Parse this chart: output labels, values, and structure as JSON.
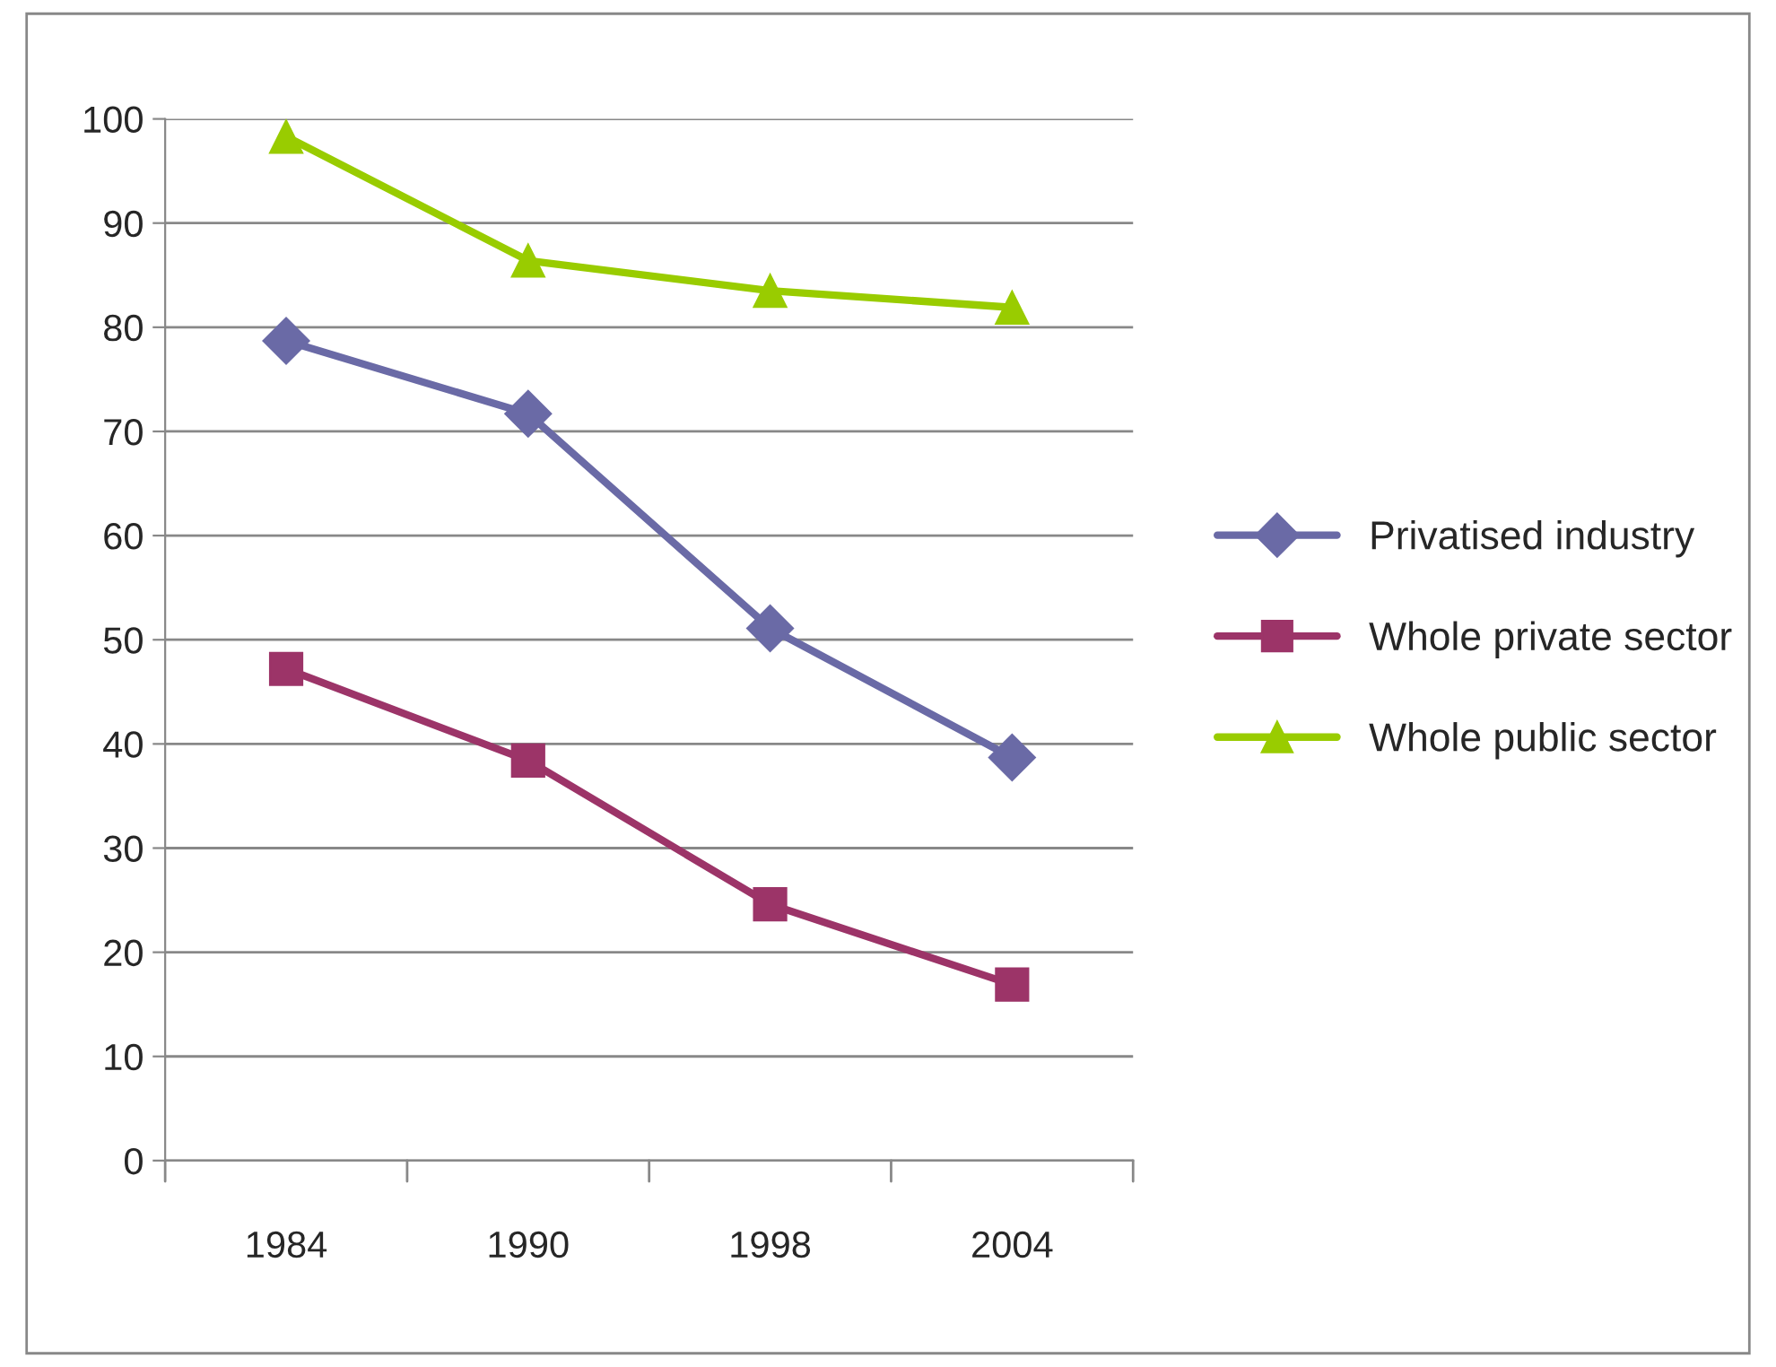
{
  "chart_data": {
    "type": "line",
    "categories": [
      "1984",
      "1990",
      "1998",
      "2004"
    ],
    "series": [
      {
        "name": "Privatised industry",
        "color": "#6a6aa6",
        "marker": "diamond",
        "values": [
          78.7,
          71.7,
          51.1,
          38.7
        ]
      },
      {
        "name": "Whole private sector",
        "color": "#9c3468",
        "marker": "square",
        "values": [
          47.2,
          38.4,
          24.6,
          16.9
        ]
      },
      {
        "name": "Whole public sector",
        "color": "#99cc00",
        "marker": "triangle",
        "values": [
          98.3,
          86.4,
          83.5,
          81.9
        ]
      }
    ],
    "ylim": [
      0,
      100
    ],
    "yticks": [
      0,
      10,
      20,
      30,
      40,
      50,
      60,
      70,
      80,
      90,
      100
    ],
    "grid": "y",
    "legend": "right",
    "line_style": "solid"
  }
}
